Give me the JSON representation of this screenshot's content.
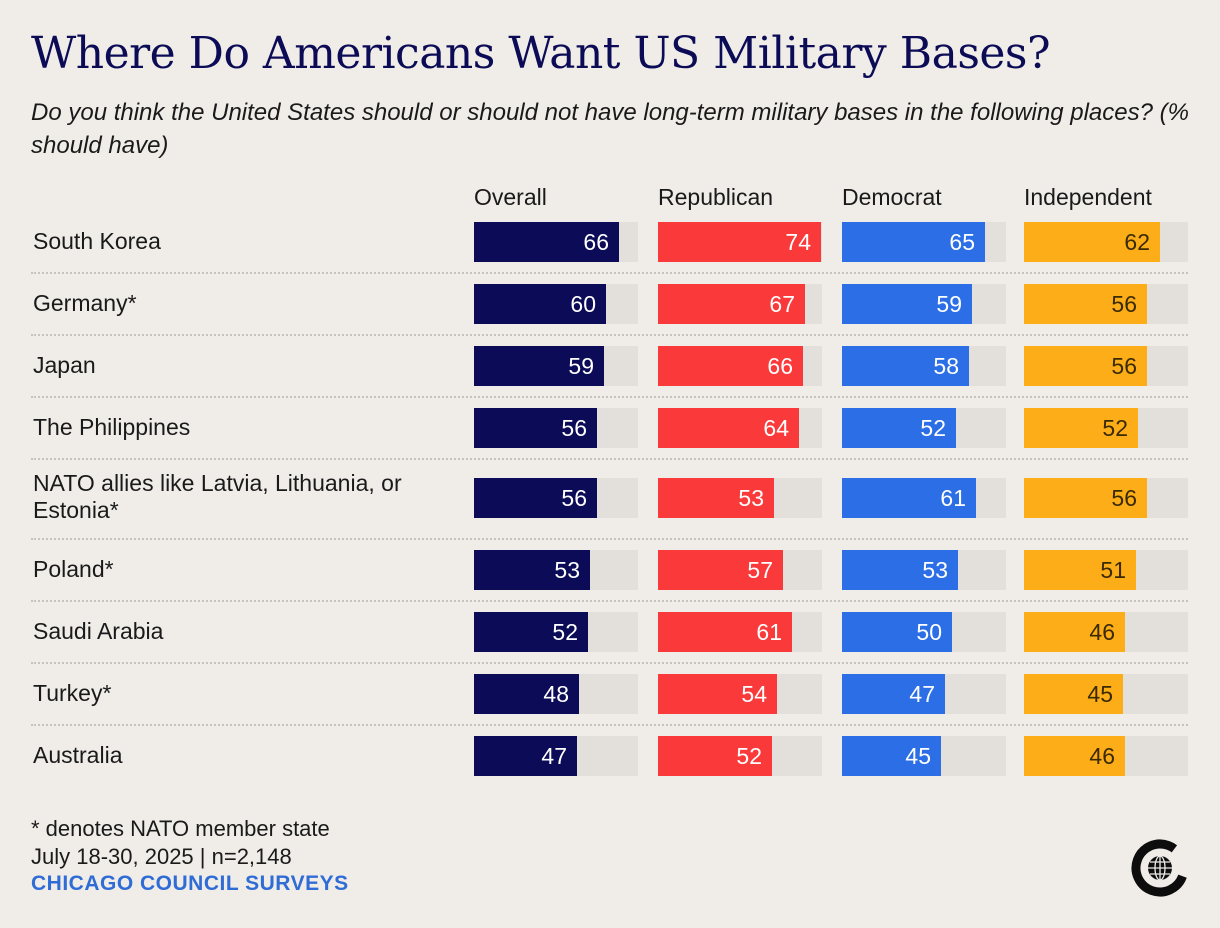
{
  "title": "Where Do Americans Want US Military Bases?",
  "subtitle": "Do you think the United States should or should not have long-term military bases in the following places? (% should have)",
  "footnote": "* denotes NATO member state",
  "dates": "July 18-30, 2025 | n=2,148",
  "source": "CHICAGO COUNCIL SURVEYS",
  "logo_icon": "chicago-council-globe-logo",
  "chart_data": {
    "type": "bar",
    "orientation": "horizontal",
    "title": "Where Do Americans Want US Military Bases?",
    "xlim": [
      0,
      100
    ],
    "categories": [
      "South Korea",
      "Germany*",
      "Japan",
      "The Philippines",
      "NATO allies like Latvia, Lithuania, or Estonia*",
      "Poland*",
      "Saudi Arabia",
      "Turkey*",
      "Australia"
    ],
    "series": [
      {
        "name": "Overall",
        "color": "#0b0b57",
        "text_color": "#ffffff",
        "values": [
          66,
          60,
          59,
          56,
          56,
          53,
          52,
          48,
          47
        ]
      },
      {
        "name": "Republican",
        "color": "#fa3a3a",
        "text_color": "#ffffff",
        "values": [
          74,
          67,
          66,
          64,
          53,
          57,
          61,
          54,
          52
        ]
      },
      {
        "name": "Democrat",
        "color": "#2b6ee6",
        "text_color": "#ffffff",
        "values": [
          65,
          59,
          58,
          52,
          61,
          53,
          50,
          47,
          45
        ]
      },
      {
        "name": "Independent",
        "color": "#fdad18",
        "text_color": "#3a2a00",
        "values": [
          62,
          56,
          56,
          52,
          56,
          51,
          46,
          45,
          46
        ]
      }
    ]
  }
}
